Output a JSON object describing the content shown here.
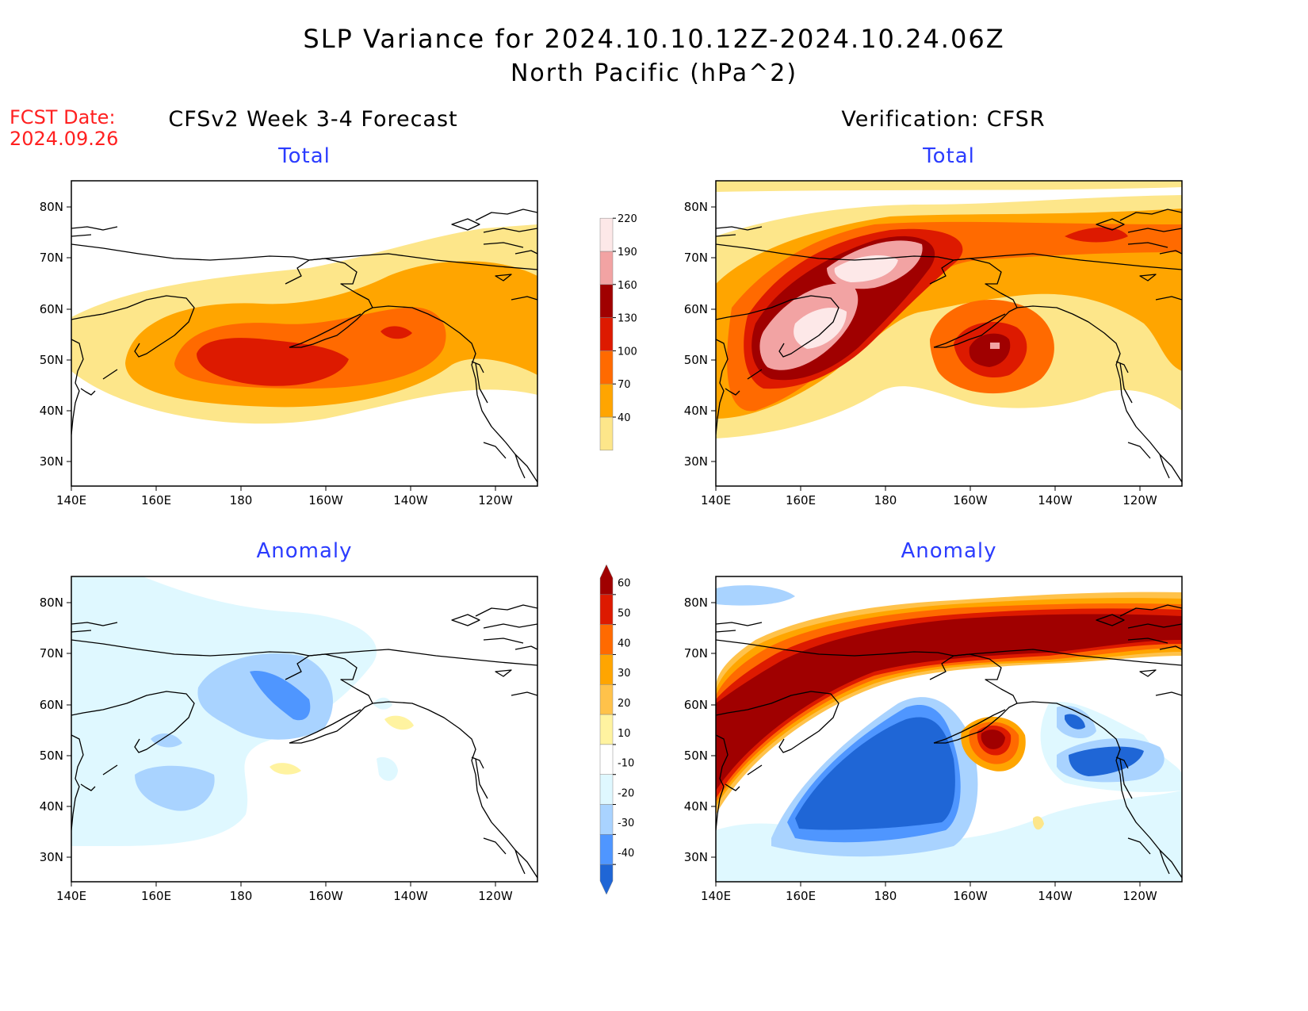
{
  "title": "SLP Variance for 2024.10.10.12Z-2024.10.24.06Z",
  "subtitle": "North Pacific (hPa^2)",
  "fcst_label": "FCST Date:",
  "fcst_date": "2024.09.26",
  "left_column_title": "CFSv2 Week 3-4 Forecast",
  "right_column_title": "Verification: CFSR",
  "panels": {
    "fc_total": {
      "title": "Total"
    },
    "vf_total": {
      "title": "Total"
    },
    "fc_anom": {
      "title": "Anomaly"
    },
    "vf_anom": {
      "title": "Anomaly"
    }
  },
  "map": {
    "lon_ticks": [
      "140E",
      "160E",
      "180",
      "160W",
      "140W",
      "120W"
    ],
    "lat_ticks": [
      "80N",
      "70N",
      "60N",
      "50N",
      "40N",
      "30N"
    ]
  },
  "colorbars": {
    "total": {
      "levels": [
        "40",
        "70",
        "100",
        "130",
        "160",
        "190",
        "220"
      ],
      "colors": [
        "#fde68a",
        "#ffa500",
        "#ff6a00",
        "#dd1a00",
        "#a00000",
        "#f2a3a3",
        "#fde8e8"
      ]
    },
    "anomaly": {
      "levels": [
        "60",
        "50",
        "40",
        "30",
        "20",
        "10",
        "-10",
        "-20",
        "-30",
        "-40"
      ],
      "colors": [
        "#a00000",
        "#dd1a00",
        "#ff6a00",
        "#ffa500",
        "#ffc24a",
        "#fff3a0",
        "#ffffff",
        "#dff8ff",
        "#a9d3ff",
        "#4f96ff",
        "#1f66d6"
      ]
    }
  }
}
